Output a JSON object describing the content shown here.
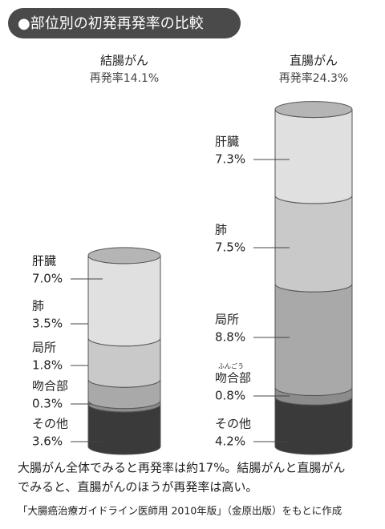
{
  "chart_data": {
    "type": "stacked-cylinder",
    "title": "●部位別の初発再発率の比較",
    "categories": [
      "結腸がん",
      "直腸がん"
    ],
    "subtitles": [
      "再発率14.1%",
      "再発率24.3%"
    ],
    "series": [
      {
        "name": "その他",
        "color": "#3a3a3a",
        "values": [
          3.6,
          4.2
        ],
        "value_labels": [
          "3.6%",
          "4.2%"
        ]
      },
      {
        "name": "吻合部",
        "color": "#8c8c8c",
        "values": [
          0.3,
          0.8
        ],
        "value_labels": [
          "0.3%",
          "0.8%"
        ]
      },
      {
        "name": "局所",
        "color": "#a9a9a9",
        "values": [
          1.8,
          8.8
        ],
        "value_labels": [
          "1.8%",
          "8.8%"
        ]
      },
      {
        "name": "肺",
        "color": "#c9c9c9",
        "values": [
          3.5,
          7.5
        ],
        "value_labels": [
          "3.5%",
          "7.5%"
        ]
      },
      {
        "name": "肝臓",
        "color": "#e0e0e0",
        "values": [
          7.0,
          7.3
        ],
        "value_labels": [
          "7.0%",
          "7.3%"
        ]
      }
    ],
    "annotations": [
      "ふんごう"
    ],
    "notes": [
      "大腸がん全体でみると再発率は約17%。結腸がんと直腸がん",
      "でみると、直腸がんのほうが再発率は高い。"
    ],
    "source": "「大腸癌治療ガイドライン医師用 2010年版」（金原出版）をもとに作成"
  }
}
